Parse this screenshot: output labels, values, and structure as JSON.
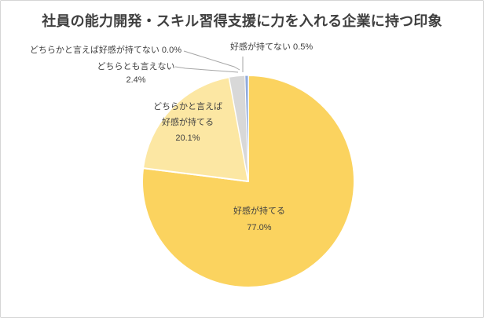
{
  "chart_data": {
    "type": "pie",
    "title": "社員の能力開発・スキル習得支援に力を入れる企業に持つ印象",
    "unit": "%",
    "start_angle_deg": 0,
    "direction": "clockwise",
    "legend_position": "none",
    "slices": [
      {
        "label": "好感が持てる",
        "value": 77.0,
        "percent_label": "77.0%",
        "color": "#FBD35F",
        "label_placement": "inside",
        "label_lines": [
          "好感が持てる",
          "77.0%"
        ]
      },
      {
        "label": "どちらかと言えば好感が持てる",
        "value": 20.1,
        "percent_label": "20.1%",
        "color": "#FCE7A3",
        "label_placement": "inside",
        "label_lines": [
          "どちらかと言えば",
          "好感が持てる",
          "20.1%"
        ]
      },
      {
        "label": "どちらとも言えない",
        "value": 2.4,
        "percent_label": "2.4%",
        "color": "#D8D8D8",
        "label_placement": "outside",
        "label_lines": [
          "どちらとも言えない",
          "2.4%"
        ]
      },
      {
        "label": "どちらかと言えば好感が持てない",
        "value": 0.0,
        "percent_label": "0.0%",
        "color": null,
        "label_placement": "outside",
        "label_lines": [
          "どちらかと言えば好感が持てない 0.0%"
        ]
      },
      {
        "label": "好感が持てない",
        "value": 0.5,
        "percent_label": "0.5%",
        "color": "#8FAADC",
        "label_placement": "outside",
        "label_lines": [
          "好感が持てない 0.5%"
        ]
      }
    ]
  },
  "colors": {
    "background": "#FFFFFF",
    "chart_border": "#D5D5D5",
    "title_text": "#3F3F3F",
    "label_text": "#404040",
    "leader_line": "#A6A6A6",
    "slice_stroke": "#FFFFFF"
  }
}
